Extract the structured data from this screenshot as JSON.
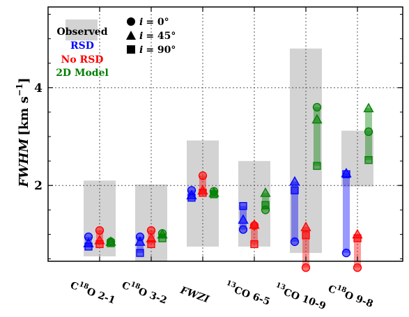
{
  "chart_data": {
    "type": "scatter",
    "ylabel_main": "FWHM",
    "ylabel_unit": "[km s",
    "ylabel_exp": "−1",
    "ylabel_close": "]",
    "ylim": [
      0.45,
      5.65
    ],
    "yticks": [
      {
        "value": 2,
        "label": "2"
      },
      {
        "value": 4,
        "label": "4"
      }
    ],
    "grid": true,
    "categories": [
      {
        "main": "C",
        "sup": "18",
        "rest": "O 2-1"
      },
      {
        "main": "C",
        "sup": "18",
        "rest": "O 3-2"
      },
      {
        "main": "FWZI",
        "sup": "",
        "rest": ""
      },
      {
        "main": "",
        "sup": "13",
        "rest": "CO 6-5"
      },
      {
        "main": "",
        "sup": "13",
        "rest": "CO 10-9"
      },
      {
        "main": "C",
        "sup": "18",
        "rest": "O 9-8"
      }
    ],
    "observed": [
      {
        "low": 0.55,
        "high": 2.1
      },
      {
        "low": 0.45,
        "high": 2.02
      },
      {
        "low": 0.75,
        "high": 2.92
      },
      {
        "low": 0.75,
        "high": 2.5
      },
      {
        "low": 0.62,
        "high": 4.8
      },
      {
        "low": 1.98,
        "high": 3.12
      }
    ],
    "legend": [
      {
        "label": "Observed",
        "color": "#000000"
      },
      {
        "label": "RSD",
        "color": "#0000ff"
      },
      {
        "label": "No RSD",
        "color": "#ff0000"
      },
      {
        "label": "2D Model",
        "color": "#008000"
      }
    ],
    "marker_legend": [
      {
        "marker": "circle",
        "symbol": "i",
        "label": "= 0°"
      },
      {
        "marker": "triangle",
        "symbol": "i",
        "label": "= 45°"
      },
      {
        "marker": "square",
        "symbol": "i",
        "label": "= 90°"
      }
    ],
    "series": [
      {
        "name": "RSD",
        "color": "#0000ff",
        "points": [
          {
            "cat": 0,
            "circle": 0.95,
            "triangle": 0.82,
            "square": 0.75
          },
          {
            "cat": 1,
            "circle": 0.95,
            "triangle": 0.85,
            "square": 0.62
          },
          {
            "cat": 2,
            "circle": 1.9,
            "triangle": 1.8,
            "square": 1.75
          },
          {
            "cat": 3,
            "circle": 1.1,
            "triangle": 1.3,
            "square": 1.58
          },
          {
            "cat": 4,
            "circle": 0.85,
            "triangle": 2.08,
            "square": 1.9
          },
          {
            "cat": 5,
            "circle": 0.62,
            "triangle": 2.25,
            "square": 2.23
          }
        ]
      },
      {
        "name": "No RSD",
        "color": "#ff0000",
        "points": [
          {
            "cat": 0,
            "circle": 1.08,
            "triangle": 0.88,
            "square": 0.8
          },
          {
            "cat": 1,
            "circle": 1.08,
            "triangle": 0.92,
            "square": 0.8
          },
          {
            "cat": 2,
            "circle": 2.2,
            "triangle": 1.9,
            "square": 1.85
          },
          {
            "cat": 3,
            "circle": 1.18,
            "triangle": 1.2,
            "square": 0.8
          },
          {
            "cat": 4,
            "circle": 0.32,
            "triangle": 1.15,
            "square": 0.98
          },
          {
            "cat": 5,
            "circle": 0.32,
            "triangle": 1.0,
            "square": 0.92
          }
        ]
      },
      {
        "name": "2D Model",
        "color": "#008000",
        "points": [
          {
            "cat": 0,
            "circle": 0.85,
            "triangle": 0.85,
            "square": 0.82
          },
          {
            "cat": 1,
            "circle": 1.02,
            "triangle": 1.0,
            "square": 0.92
          },
          {
            "cat": 2,
            "circle": 1.88,
            "triangle": 1.85,
            "square": 1.82
          },
          {
            "cat": 3,
            "circle": 1.5,
            "triangle": 1.85,
            "square": 1.6
          },
          {
            "cat": 4,
            "circle": 3.6,
            "triangle": 3.35,
            "square": 2.4
          },
          {
            "cat": 5,
            "circle": 3.1,
            "triangle": 3.58,
            "square": 2.52
          }
        ]
      }
    ]
  }
}
